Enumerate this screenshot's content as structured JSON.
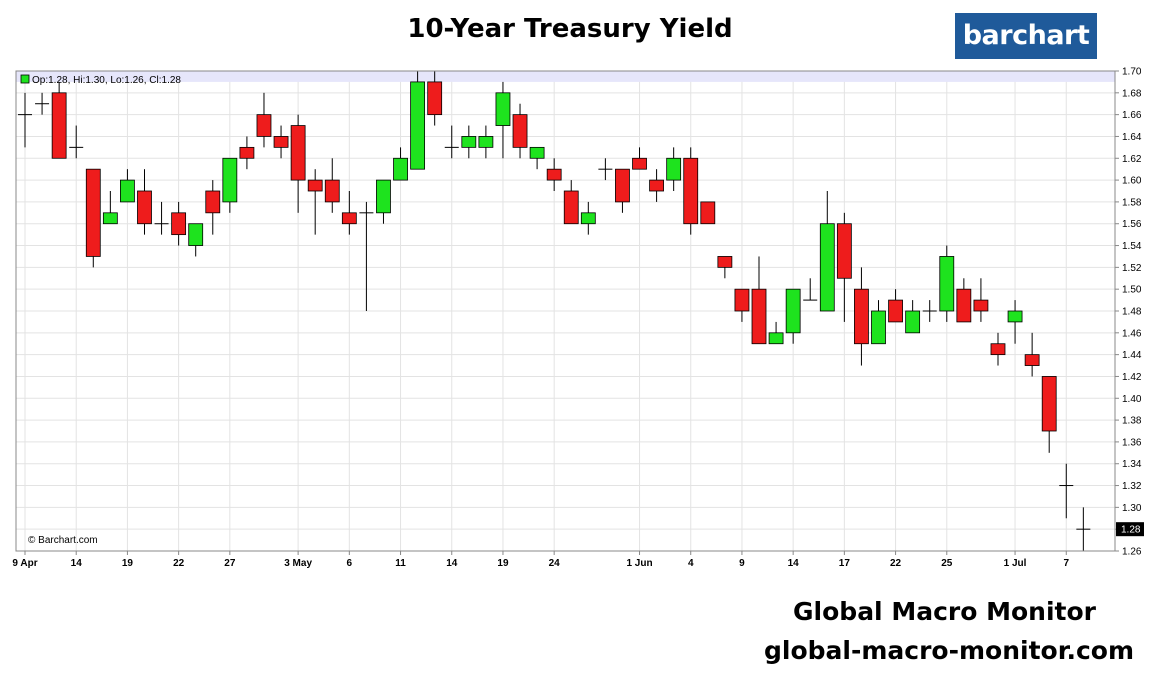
{
  "header": {
    "title": "10-Year Treasury Yield",
    "logo_text": "barchart"
  },
  "footer": {
    "name": "Global Macro Monitor",
    "url": "global-macro-monitor.com"
  },
  "colors": {
    "up": "#1ee31e",
    "down": "#ee1c1c",
    "grid": "#e3e3e3",
    "highlight": "#e6e6fb",
    "logo_bg": "#1f5a9a"
  },
  "chart_data": {
    "type": "candlestick",
    "title": "10-Year Treasury Yield",
    "info_label": "Op:1.28, Hi:1.30, Lo:1.26, Cl:1.28",
    "copyright": "© Barchart.com",
    "last_value_label": "1.28",
    "ylim": [
      1.26,
      1.7
    ],
    "y_ticks": [
      "1.26",
      "1.28",
      "1.30",
      "1.32",
      "1.34",
      "1.36",
      "1.38",
      "1.40",
      "1.42",
      "1.44",
      "1.46",
      "1.48",
      "1.50",
      "1.52",
      "1.54",
      "1.56",
      "1.58",
      "1.60",
      "1.62",
      "1.64",
      "1.66",
      "1.68",
      "1.70"
    ],
    "x_tick_labels": [
      {
        "index": 0,
        "label": "9 Apr"
      },
      {
        "index": 3,
        "label": "14"
      },
      {
        "index": 6,
        "label": "19"
      },
      {
        "index": 9,
        "label": "22"
      },
      {
        "index": 12,
        "label": "27"
      },
      {
        "index": 16,
        "label": "3 May"
      },
      {
        "index": 19,
        "label": "6"
      },
      {
        "index": 22,
        "label": "11"
      },
      {
        "index": 25,
        "label": "14"
      },
      {
        "index": 28,
        "label": "19"
      },
      {
        "index": 31,
        "label": "24"
      },
      {
        "index": 36,
        "label": "1 Jun"
      },
      {
        "index": 39,
        "label": "4"
      },
      {
        "index": 42,
        "label": "9"
      },
      {
        "index": 45,
        "label": "14"
      },
      {
        "index": 48,
        "label": "17"
      },
      {
        "index": 51,
        "label": "22"
      },
      {
        "index": 54,
        "label": "25"
      },
      {
        "index": 58,
        "label": "1 Jul"
      },
      {
        "index": 61,
        "label": "7"
      }
    ],
    "grid": true,
    "candles": [
      {
        "o": 1.66,
        "h": 1.68,
        "l": 1.63,
        "c": 1.66
      },
      {
        "o": 1.67,
        "h": 1.68,
        "l": 1.66,
        "c": 1.67
      },
      {
        "o": 1.68,
        "h": 1.69,
        "l": 1.62,
        "c": 1.62
      },
      {
        "o": 1.63,
        "h": 1.65,
        "l": 1.62,
        "c": 1.63
      },
      {
        "o": 1.61,
        "h": 1.61,
        "l": 1.52,
        "c": 1.53
      },
      {
        "o": 1.56,
        "h": 1.59,
        "l": 1.56,
        "c": 1.57
      },
      {
        "o": 1.58,
        "h": 1.61,
        "l": 1.58,
        "c": 1.6
      },
      {
        "o": 1.59,
        "h": 1.61,
        "l": 1.55,
        "c": 1.56
      },
      {
        "o": 1.56,
        "h": 1.58,
        "l": 1.55,
        "c": 1.56
      },
      {
        "o": 1.57,
        "h": 1.58,
        "l": 1.54,
        "c": 1.55
      },
      {
        "o": 1.54,
        "h": 1.56,
        "l": 1.53,
        "c": 1.56
      },
      {
        "o": 1.59,
        "h": 1.6,
        "l": 1.55,
        "c": 1.57
      },
      {
        "o": 1.58,
        "h": 1.62,
        "l": 1.57,
        "c": 1.62
      },
      {
        "o": 1.63,
        "h": 1.64,
        "l": 1.61,
        "c": 1.62
      },
      {
        "o": 1.66,
        "h": 1.68,
        "l": 1.63,
        "c": 1.64
      },
      {
        "o": 1.64,
        "h": 1.65,
        "l": 1.62,
        "c": 1.63
      },
      {
        "o": 1.65,
        "h": 1.66,
        "l": 1.57,
        "c": 1.6
      },
      {
        "o": 1.6,
        "h": 1.61,
        "l": 1.55,
        "c": 1.59
      },
      {
        "o": 1.6,
        "h": 1.62,
        "l": 1.57,
        "c": 1.58
      },
      {
        "o": 1.57,
        "h": 1.59,
        "l": 1.55,
        "c": 1.56
      },
      {
        "o": 1.57,
        "h": 1.58,
        "l": 1.48,
        "c": 1.57
      },
      {
        "o": 1.57,
        "h": 1.6,
        "l": 1.56,
        "c": 1.6
      },
      {
        "o": 1.6,
        "h": 1.63,
        "l": 1.6,
        "c": 1.62
      },
      {
        "o": 1.61,
        "h": 1.7,
        "l": 1.61,
        "c": 1.69
      },
      {
        "o": 1.69,
        "h": 1.7,
        "l": 1.65,
        "c": 1.66
      },
      {
        "o": 1.63,
        "h": 1.65,
        "l": 1.62,
        "c": 1.63
      },
      {
        "o": 1.63,
        "h": 1.65,
        "l": 1.62,
        "c": 1.64
      },
      {
        "o": 1.63,
        "h": 1.65,
        "l": 1.62,
        "c": 1.64
      },
      {
        "o": 1.65,
        "h": 1.69,
        "l": 1.62,
        "c": 1.68
      },
      {
        "o": 1.66,
        "h": 1.67,
        "l": 1.62,
        "c": 1.63
      },
      {
        "o": 1.62,
        "h": 1.63,
        "l": 1.61,
        "c": 1.63
      },
      {
        "o": 1.61,
        "h": 1.62,
        "l": 1.59,
        "c": 1.6
      },
      {
        "o": 1.59,
        "h": 1.6,
        "l": 1.56,
        "c": 1.56
      },
      {
        "o": 1.56,
        "h": 1.58,
        "l": 1.55,
        "c": 1.57
      },
      {
        "o": 1.61,
        "h": 1.62,
        "l": 1.6,
        "c": 1.61
      },
      {
        "o": 1.61,
        "h": 1.61,
        "l": 1.57,
        "c": 1.58
      },
      {
        "o": 1.62,
        "h": 1.63,
        "l": 1.61,
        "c": 1.61
      },
      {
        "o": 1.6,
        "h": 1.61,
        "l": 1.58,
        "c": 1.59
      },
      {
        "o": 1.6,
        "h": 1.63,
        "l": 1.59,
        "c": 1.62
      },
      {
        "o": 1.62,
        "h": 1.63,
        "l": 1.55,
        "c": 1.56
      },
      {
        "o": 1.58,
        "h": 1.58,
        "l": 1.56,
        "c": 1.56
      },
      {
        "o": 1.53,
        "h": 1.53,
        "l": 1.51,
        "c": 1.52
      },
      {
        "o": 1.5,
        "h": 1.5,
        "l": 1.47,
        "c": 1.48
      },
      {
        "o": 1.5,
        "h": 1.53,
        "l": 1.45,
        "c": 1.45
      },
      {
        "o": 1.45,
        "h": 1.47,
        "l": 1.45,
        "c": 1.46
      },
      {
        "o": 1.46,
        "h": 1.5,
        "l": 1.45,
        "c": 1.5
      },
      {
        "o": 1.49,
        "h": 1.51,
        "l": 1.49,
        "c": 1.49
      },
      {
        "o": 1.48,
        "h": 1.59,
        "l": 1.48,
        "c": 1.56
      },
      {
        "o": 1.56,
        "h": 1.57,
        "l": 1.47,
        "c": 1.51
      },
      {
        "o": 1.5,
        "h": 1.52,
        "l": 1.43,
        "c": 1.45
      },
      {
        "o": 1.45,
        "h": 1.49,
        "l": 1.45,
        "c": 1.48
      },
      {
        "o": 1.49,
        "h": 1.5,
        "l": 1.47,
        "c": 1.47
      },
      {
        "o": 1.46,
        "h": 1.49,
        "l": 1.46,
        "c": 1.48
      },
      {
        "o": 1.48,
        "h": 1.49,
        "l": 1.47,
        "c": 1.48
      },
      {
        "o": 1.48,
        "h": 1.54,
        "l": 1.47,
        "c": 1.53
      },
      {
        "o": 1.5,
        "h": 1.51,
        "l": 1.47,
        "c": 1.47
      },
      {
        "o": 1.49,
        "h": 1.51,
        "l": 1.47,
        "c": 1.48
      },
      {
        "o": 1.45,
        "h": 1.46,
        "l": 1.43,
        "c": 1.44
      },
      {
        "o": 1.47,
        "h": 1.49,
        "l": 1.45,
        "c": 1.48
      },
      {
        "o": 1.44,
        "h": 1.46,
        "l": 1.42,
        "c": 1.43
      },
      {
        "o": 1.42,
        "h": 1.42,
        "l": 1.35,
        "c": 1.37
      },
      {
        "o": 1.32,
        "h": 1.34,
        "l": 1.29,
        "c": 1.32
      },
      {
        "o": 1.28,
        "h": 1.3,
        "l": 1.26,
        "c": 1.28
      }
    ]
  }
}
